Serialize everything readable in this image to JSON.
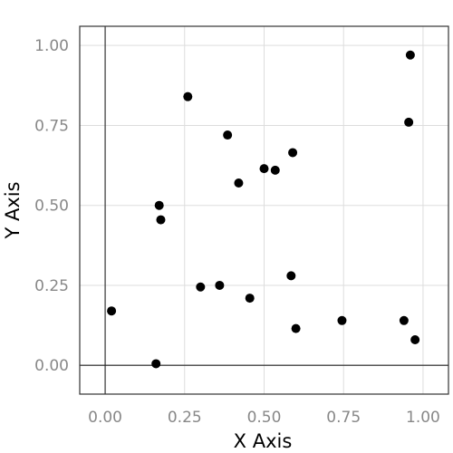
{
  "chart_data": {
    "type": "scatter",
    "title": "",
    "xlabel": "X Axis",
    "ylabel": "Y Axis",
    "xlim": [
      -0.08,
      1.08
    ],
    "ylim": [
      -0.09,
      1.06
    ],
    "x_ticks": [
      0,
      0.25,
      0.5,
      0.75,
      1
    ],
    "y_ticks": [
      0,
      0.25,
      0.5,
      0.75,
      1
    ],
    "x_tick_labels": [
      "0.00",
      "0.25",
      "0.50",
      "0.75",
      "1.00"
    ],
    "y_tick_labels": [
      "0.00",
      "0.25",
      "0.50",
      "0.75",
      "1.00"
    ],
    "grid": true,
    "zero_lines": true,
    "marker_color": "#000000",
    "points": [
      {
        "x": 0.02,
        "y": 0.17
      },
      {
        "x": 0.16,
        "y": 0.005
      },
      {
        "x": 0.17,
        "y": 0.5
      },
      {
        "x": 0.175,
        "y": 0.455
      },
      {
        "x": 0.26,
        "y": 0.84
      },
      {
        "x": 0.3,
        "y": 0.245
      },
      {
        "x": 0.36,
        "y": 0.25
      },
      {
        "x": 0.385,
        "y": 0.72
      },
      {
        "x": 0.42,
        "y": 0.57
      },
      {
        "x": 0.455,
        "y": 0.21
      },
      {
        "x": 0.5,
        "y": 0.615
      },
      {
        "x": 0.535,
        "y": 0.61
      },
      {
        "x": 0.585,
        "y": 0.28
      },
      {
        "x": 0.59,
        "y": 0.665
      },
      {
        "x": 0.6,
        "y": 0.115
      },
      {
        "x": 0.745,
        "y": 0.14
      },
      {
        "x": 0.94,
        "y": 0.14
      },
      {
        "x": 0.955,
        "y": 0.76
      },
      {
        "x": 0.96,
        "y": 0.97
      },
      {
        "x": 0.975,
        "y": 0.08
      }
    ]
  }
}
